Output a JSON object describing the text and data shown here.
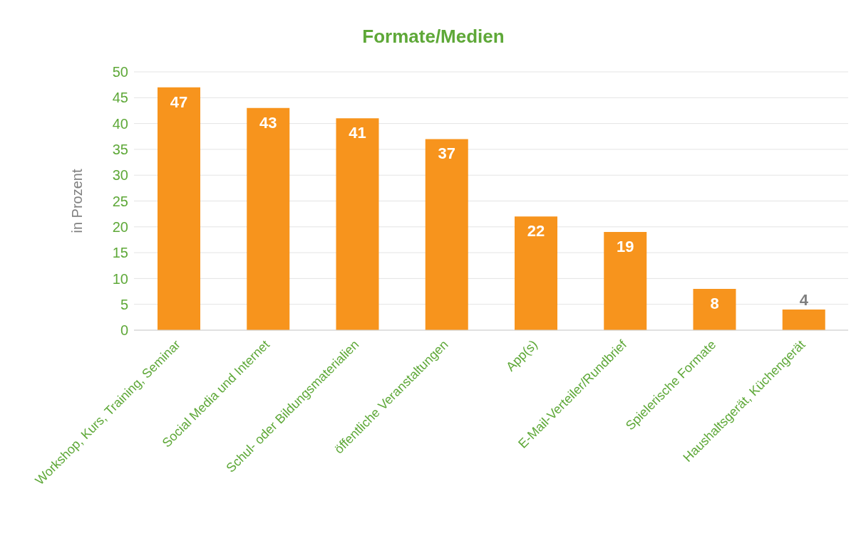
{
  "chart_data": {
    "type": "bar",
    "title": "Formate/Medien",
    "ylabel": "in Prozent",
    "categories": [
      "Workshop, Kurs, Training, Seminar",
      "Social Media und Internet",
      "Schul- oder Bildungsmaterialien",
      "öffentliche Veranstaltungen",
      "App(s)",
      "E-Mail-Verteiler/Rundbrief",
      "Spielerische Formate",
      "Haushaltsgerät, Küchengerät"
    ],
    "values": [
      47,
      43,
      41,
      37,
      22,
      19,
      8,
      4
    ],
    "color": "#f7941d",
    "ylim": [
      0,
      50
    ],
    "yticks": [
      0,
      5,
      10,
      15,
      20,
      25,
      30,
      35,
      40,
      45,
      50
    ],
    "grid": "y",
    "data_labels": true
  }
}
